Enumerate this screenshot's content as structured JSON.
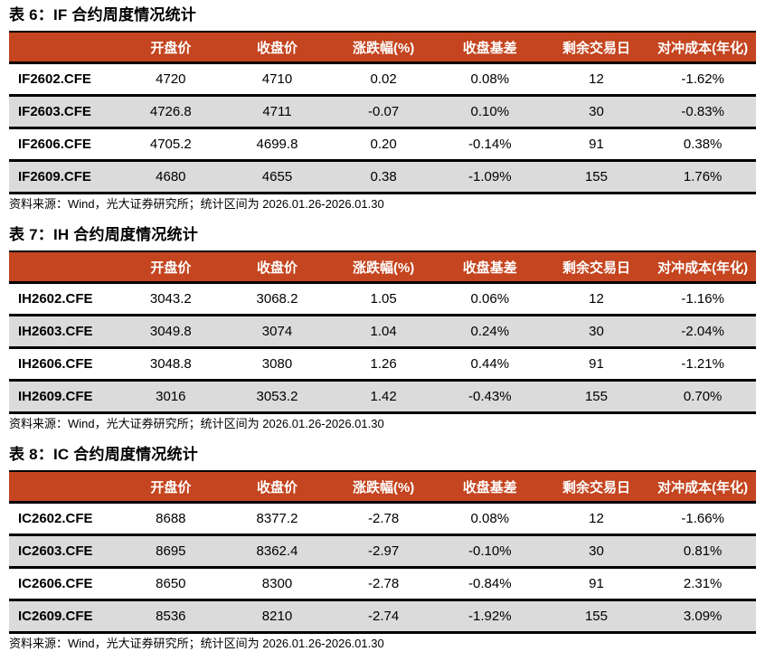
{
  "colors": {
    "header_bg": "#C4451F",
    "header_text": "#FFFFFF",
    "row_alt_bg": "#DBDBDB",
    "row_bg": "#FFFFFF",
    "border": "#000000"
  },
  "columns": [
    "",
    "开盘价",
    "收盘价",
    "涨跌幅(%)",
    "收盘基差",
    "剩余交易日",
    "对冲成本(年化)"
  ],
  "source_note": "资料来源：Wind，光大证券研究所；统计区间为 2026.01.26-2026.01.30",
  "tables": [
    {
      "title": "表 6：IF 合约周度情况统计",
      "rows": [
        [
          "IF2602.CFE",
          "4720",
          "4710",
          "0.02",
          "0.08%",
          "12",
          "-1.62%"
        ],
        [
          "IF2603.CFE",
          "4726.8",
          "4711",
          "-0.07",
          "0.10%",
          "30",
          "-0.83%"
        ],
        [
          "IF2606.CFE",
          "4705.2",
          "4699.8",
          "0.20",
          "-0.14%",
          "91",
          "0.38%"
        ],
        [
          "IF2609.CFE",
          "4680",
          "4655",
          "0.38",
          "-1.09%",
          "155",
          "1.76%"
        ]
      ]
    },
    {
      "title": "表 7：IH 合约周度情况统计",
      "rows": [
        [
          "IH2602.CFE",
          "3043.2",
          "3068.2",
          "1.05",
          "0.06%",
          "12",
          "-1.16%"
        ],
        [
          "IH2603.CFE",
          "3049.8",
          "3074",
          "1.04",
          "0.24%",
          "30",
          "-2.04%"
        ],
        [
          "IH2606.CFE",
          "3048.8",
          "3080",
          "1.26",
          "0.44%",
          "91",
          "-1.21%"
        ],
        [
          "IH2609.CFE",
          "3016",
          "3053.2",
          "1.42",
          "-0.43%",
          "155",
          "0.70%"
        ]
      ]
    },
    {
      "title": "表 8：IC 合约周度情况统计",
      "rows": [
        [
          "IC2602.CFE",
          "8688",
          "8377.2",
          "-2.78",
          "0.08%",
          "12",
          "-1.66%"
        ],
        [
          "IC2603.CFE",
          "8695",
          "8362.4",
          "-2.97",
          "-0.10%",
          "30",
          "0.81%"
        ],
        [
          "IC2606.CFE",
          "8650",
          "8300",
          "-2.78",
          "-0.84%",
          "91",
          "2.31%"
        ],
        [
          "IC2609.CFE",
          "8536",
          "8210",
          "-2.74",
          "-1.92%",
          "155",
          "3.09%"
        ]
      ]
    }
  ]
}
